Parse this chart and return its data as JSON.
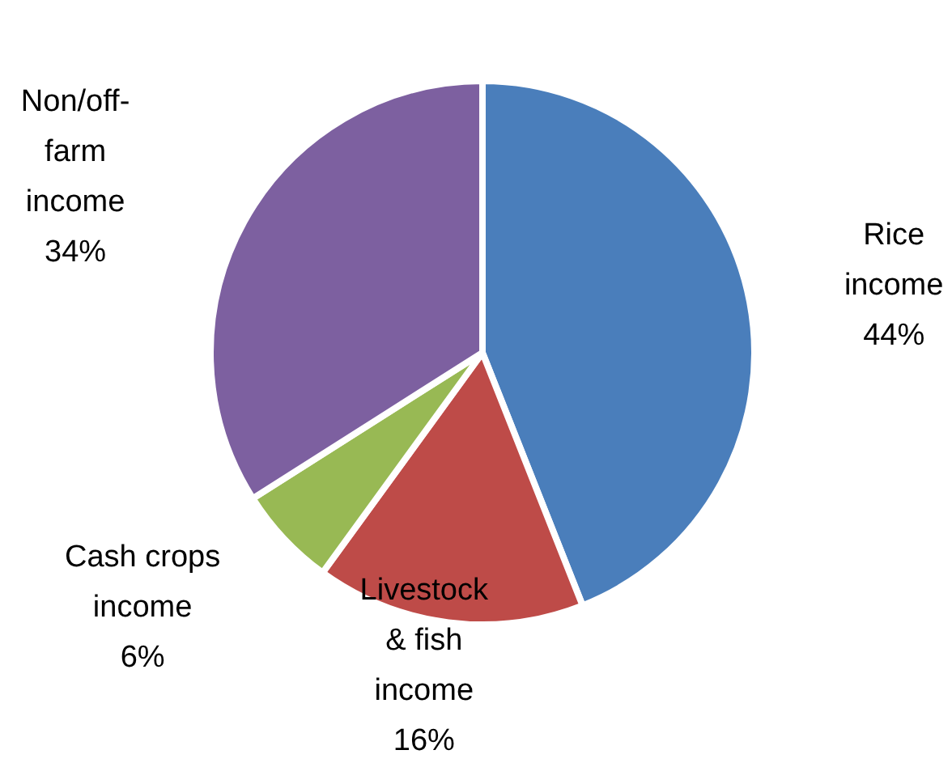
{
  "chart_data": {
    "type": "pie",
    "categories": [
      "Rice income",
      "Livestock & fish income",
      "Cash crops income",
      "Non/off-farm income"
    ],
    "values": [
      44,
      16,
      6,
      34
    ],
    "colors": [
      "#4a7ebb",
      "#be4b48",
      "#98b954",
      "#7d60a0"
    ],
    "value_labels": [
      "44%",
      "16%",
      "6%",
      "34%"
    ]
  }
}
